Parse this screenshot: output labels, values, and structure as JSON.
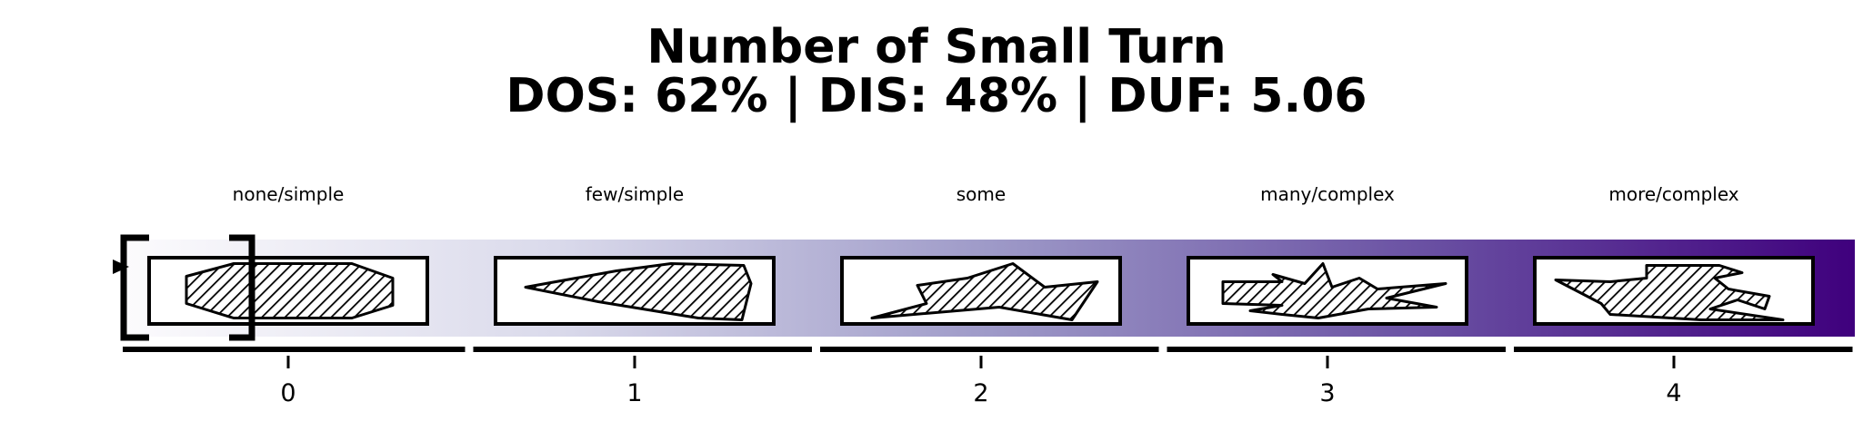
{
  "title": {
    "line1": "Number of Small Turn",
    "line2": "DOS: 62% | DIS: 48% | DUF: 5.06"
  },
  "scale": {
    "levels": [
      {
        "value": "0",
        "label": "none/simple",
        "icon": "hatched-elongated-octagon-icon"
      },
      {
        "value": "1",
        "label": "few/simple",
        "icon": "hatched-wedge-icon"
      },
      {
        "value": "2",
        "label": "some",
        "icon": "hatched-jagged-arrow-icon"
      },
      {
        "value": "3",
        "label": "many/complex",
        "icon": "hatched-spiky-star-icon"
      },
      {
        "value": "4",
        "label": "more/complex",
        "icon": "hatched-complex-polygon-icon"
      }
    ],
    "selected_index": 0,
    "gradient_colors": [
      "#fcfbfd",
      "#dadaeb",
      "#9e9ac8",
      "#6a51a3",
      "#3f007d"
    ],
    "frame_color": "#000000"
  }
}
